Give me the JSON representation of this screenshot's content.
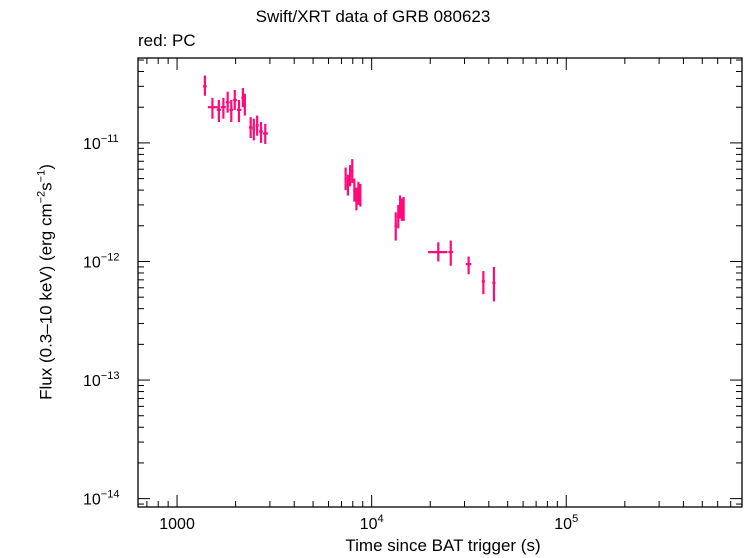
{
  "chart_data": {
    "type": "scatter",
    "title": "Swift/XRT data of GRB 080623",
    "subtitle": "red: PC",
    "xlabel": "Time since BAT trigger (s)",
    "ylabel_parts": [
      "Flux (0.3–10 keV) (erg cm",
      "−2",
      "s",
      "−1",
      ")"
    ],
    "x_scale": "log",
    "y_scale": "log",
    "xlim": [
      630,
      800000
    ],
    "ylim": [
      8.5e-15,
      5.2e-11
    ],
    "x_ticks": [
      {
        "value": 1000,
        "base": "1000",
        "exp": ""
      },
      {
        "value": 10000,
        "base": "10",
        "exp": "4"
      },
      {
        "value": 100000,
        "base": "10",
        "exp": "5"
      }
    ],
    "y_ticks": [
      {
        "value": 1e-14,
        "base": "10",
        "exp": "−14"
      },
      {
        "value": 1e-13,
        "base": "10",
        "exp": "−13"
      },
      {
        "value": 1e-12,
        "base": "10",
        "exp": "−12"
      },
      {
        "value": 1e-11,
        "base": "10",
        "exp": "−11"
      }
    ],
    "grid": false,
    "marker_color": "#ff0a78",
    "series": [
      {
        "points": [
          {
            "x": 1390,
            "xlo": 1360,
            "xhi": 1420,
            "y": 3e-11,
            "ylo": 2.5e-11,
            "yhi": 3.7e-11
          },
          {
            "x": 1520,
            "xlo": 1440,
            "xhi": 1620,
            "y": 2e-11,
            "ylo": 1.6e-11,
            "yhi": 2.4e-11
          },
          {
            "x": 1640,
            "xlo": 1600,
            "xhi": 1680,
            "y": 1.9e-11,
            "ylo": 1.5e-11,
            "yhi": 2.3e-11
          },
          {
            "x": 1730,
            "xlo": 1680,
            "xhi": 1780,
            "y": 2e-11,
            "ylo": 1.6e-11,
            "yhi": 2.4e-11
          },
          {
            "x": 1820,
            "xlo": 1780,
            "xhi": 1860,
            "y": 2.2e-11,
            "ylo": 1.8e-11,
            "yhi": 2.7e-11
          },
          {
            "x": 1900,
            "xlo": 1860,
            "xhi": 1940,
            "y": 1.9e-11,
            "ylo": 1.5e-11,
            "yhi": 2.3e-11
          },
          {
            "x": 1980,
            "xlo": 1940,
            "xhi": 2030,
            "y": 2.3e-11,
            "ylo": 1.9e-11,
            "yhi": 2.8e-11
          },
          {
            "x": 2080,
            "xlo": 2030,
            "xhi": 2140,
            "y": 1.9e-11,
            "ylo": 1.5e-11,
            "yhi": 2.3e-11
          },
          {
            "x": 2180,
            "xlo": 2140,
            "xhi": 2220,
            "y": 2.4e-11,
            "ylo": 2e-11,
            "yhi": 2.9e-11
          },
          {
            "x": 2230,
            "xlo": 2200,
            "xhi": 2260,
            "y": 2.1e-11,
            "ylo": 1.7e-11,
            "yhi": 2.6e-11
          },
          {
            "x": 2390,
            "xlo": 2340,
            "xhi": 2440,
            "y": 1.35e-11,
            "ylo": 1.1e-11,
            "yhi": 1.65e-11
          },
          {
            "x": 2480,
            "xlo": 2440,
            "xhi": 2520,
            "y": 1.3e-11,
            "ylo": 1.05e-11,
            "yhi": 1.6e-11
          },
          {
            "x": 2580,
            "xlo": 2530,
            "xhi": 2630,
            "y": 1.4e-11,
            "ylo": 1.15e-11,
            "yhi": 1.7e-11
          },
          {
            "x": 2700,
            "xlo": 2640,
            "xhi": 2760,
            "y": 1.25e-11,
            "ylo": 1e-11,
            "yhi": 1.5e-11
          },
          {
            "x": 2840,
            "xlo": 2760,
            "xhi": 2930,
            "y": 1.2e-11,
            "ylo": 9.8e-12,
            "yhi": 1.45e-11
          },
          {
            "x": 7350,
            "xlo": 7250,
            "xhi": 7450,
            "y": 5e-12,
            "ylo": 4e-12,
            "yhi": 6.2e-12
          },
          {
            "x": 7550,
            "xlo": 7450,
            "xhi": 7650,
            "y": 4.4e-12,
            "ylo": 3.6e-12,
            "yhi": 5.4e-12
          },
          {
            "x": 7750,
            "xlo": 7650,
            "xhi": 7850,
            "y": 5.3e-12,
            "ylo": 4.3e-12,
            "yhi": 6.5e-12
          },
          {
            "x": 7950,
            "xlo": 7850,
            "xhi": 8050,
            "y": 5.8e-12,
            "ylo": 4.6e-12,
            "yhi": 7.3e-12
          },
          {
            "x": 8150,
            "xlo": 8050,
            "xhi": 8250,
            "y": 4e-12,
            "ylo": 3.2e-12,
            "yhi": 5e-12
          },
          {
            "x": 8350,
            "xlo": 8250,
            "xhi": 8450,
            "y": 3.4e-12,
            "ylo": 2.7e-12,
            "yhi": 4.2e-12
          },
          {
            "x": 8550,
            "xlo": 8450,
            "xhi": 8650,
            "y": 3.8e-12,
            "ylo": 3e-12,
            "yhi": 4.7e-12
          },
          {
            "x": 8750,
            "xlo": 8650,
            "xhi": 8850,
            "y": 3.6e-12,
            "ylo": 2.9e-12,
            "yhi": 4.5e-12
          },
          {
            "x": 13300,
            "xlo": 13100,
            "xhi": 13500,
            "y": 2e-12,
            "ylo": 1.5e-12,
            "yhi": 2.6e-12
          },
          {
            "x": 13700,
            "xlo": 13500,
            "xhi": 13900,
            "y": 2.4e-12,
            "ylo": 1.9e-12,
            "yhi": 3e-12
          },
          {
            "x": 14000,
            "xlo": 13900,
            "xhi": 14100,
            "y": 2.9e-12,
            "ylo": 2.3e-12,
            "yhi": 3.6e-12
          },
          {
            "x": 14300,
            "xlo": 14150,
            "xhi": 14450,
            "y": 2.7e-12,
            "ylo": 2.2e-12,
            "yhi": 3.4e-12
          },
          {
            "x": 14600,
            "xlo": 14450,
            "xhi": 14750,
            "y": 2.8e-12,
            "ylo": 2.2e-12,
            "yhi": 3.5e-12
          },
          {
            "x": 22000,
            "xlo": 19500,
            "xhi": 24500,
            "y": 1.2e-12,
            "ylo": 1e-12,
            "yhi": 1.45e-12
          },
          {
            "x": 25500,
            "xlo": 24800,
            "xhi": 26200,
            "y": 1.2e-12,
            "ylo": 9.2e-13,
            "yhi": 1.5e-12
          },
          {
            "x": 31500,
            "xlo": 30500,
            "xhi": 32500,
            "y": 9.5e-13,
            "ylo": 7.8e-13,
            "yhi": 1.1e-12
          },
          {
            "x": 37500,
            "xlo": 36800,
            "xhi": 38200,
            "y": 6.8e-13,
            "ylo": 5.3e-13,
            "yhi": 8.3e-13
          },
          {
            "x": 42500,
            "xlo": 41700,
            "xhi": 43300,
            "y": 6.6e-13,
            "ylo": 4.6e-13,
            "yhi": 9e-13
          }
        ]
      }
    ]
  }
}
